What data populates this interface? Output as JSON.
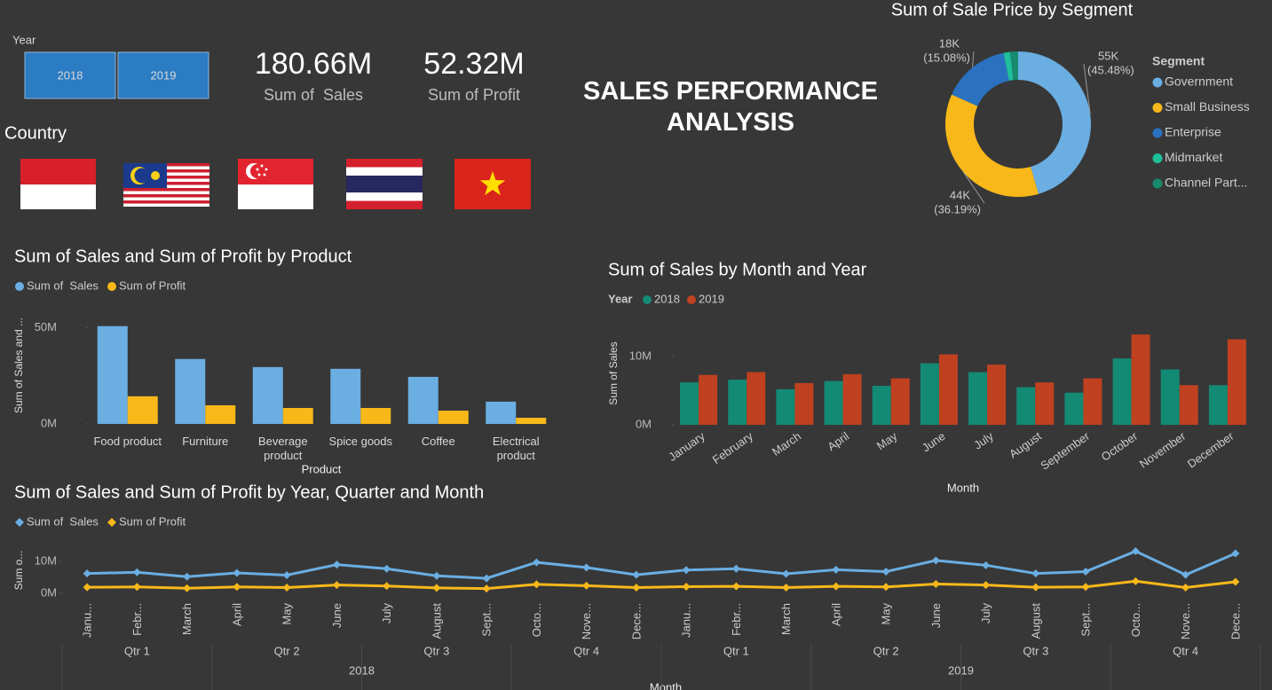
{
  "title": "SALES PERFORMANCE ANALYSIS",
  "slicer": {
    "label": "Year",
    "options": [
      "2018",
      "2019"
    ]
  },
  "cards": [
    {
      "value": "180.66M",
      "label": "Sum of  Sales"
    },
    {
      "value": "52.32M",
      "label": "Sum of Profit"
    }
  ],
  "country_label": "Country",
  "chart_data": [
    {
      "type": "donut",
      "title": "Sum of Sale Price by Segment",
      "legend_title": "Segment",
      "legend": "right",
      "categories": [
        "Government",
        "Small Business",
        "Enterprise",
        "Midmarket",
        "Channel Part..."
      ],
      "values": [
        54.98,
        43.75,
        18.23,
        1.8,
        2.13
      ],
      "value_labels": [
        "55K",
        "44K",
        "18K",
        null,
        null
      ],
      "percent_labels": [
        "(45.48%)",
        "(36.19%)",
        "(15.08%)",
        null,
        null
      ],
      "colors": [
        "#6aaee2",
        "#f8b81a",
        "#2a72c0",
        "#1fbf9c",
        "#178a70"
      ]
    },
    {
      "type": "bar",
      "title": "Sum of Sales and Sum of Profit by Product",
      "legend": "top-left",
      "x_label": "Product",
      "y_label": "Sum of Sales and ...",
      "categories": [
        "Food product",
        "Furniture",
        "Beverage product",
        "Spice goods",
        "Coffee",
        "Electrical product"
      ],
      "series": [
        {
          "name": "Sum of  Sales",
          "color": "#6aaee2",
          "values": [
            50.9,
            33.8,
            29.6,
            28.7,
            24.5,
            11.6
          ]
        },
        {
          "name": "Sum of Profit",
          "color": "#f8b81a",
          "values": [
            14.4,
            9.7,
            8.3,
            8.3,
            6.9,
            3.2
          ]
        }
      ],
      "ylim": [
        0,
        60
      ],
      "yticks": [
        {
          "value": 0,
          "label": "0M"
        },
        {
          "value": 50,
          "label": "50M"
        }
      ]
    },
    {
      "type": "bar",
      "title": "Sum of Sales by Month and Year",
      "legend": "top-left",
      "legend_title": "Year",
      "x_label": "Month",
      "y_label": "Sum of Sales",
      "categories": [
        "January",
        "February",
        "March",
        "April",
        "May",
        "June",
        "July",
        "August",
        "September",
        "October",
        "November",
        "December"
      ],
      "series": [
        {
          "name": "2018",
          "color": "#138a74",
          "values": [
            6.2,
            6.6,
            5.2,
            6.4,
            5.7,
            9.0,
            7.7,
            5.5,
            4.7,
            9.7,
            8.1,
            5.8
          ]
        },
        {
          "name": "2019",
          "color": "#bf4120",
          "values": [
            7.3,
            7.7,
            6.1,
            7.4,
            6.8,
            10.3,
            8.8,
            6.2,
            6.8,
            13.2,
            5.8,
            12.5
          ]
        }
      ],
      "ylim": [
        0,
        14
      ],
      "yticks": [
        {
          "value": 0,
          "label": "0M"
        },
        {
          "value": 10,
          "label": "10M"
        }
      ]
    },
    {
      "type": "line",
      "title": "Sum of Sales and Sum of Profit by Year, Quarter and Month",
      "legend": "top-left",
      "x_label": "Month",
      "y_label": "Sum o...",
      "categories": [
        "Janu...",
        "Febr...",
        "March",
        "April",
        "May",
        "June",
        "July",
        "August",
        "Sept...",
        "Octo...",
        "Nove...",
        "Dece...",
        "Janu...",
        "Febr...",
        "March",
        "April",
        "May",
        "June",
        "July",
        "August",
        "Sept...",
        "Octo...",
        "Nove...",
        "Dece..."
      ],
      "quarters": [
        "Qtr 1",
        "Qtr 2",
        "Qtr 3",
        "Qtr 4",
        "Qtr 1",
        "Qtr 2",
        "Qtr 3",
        "Qtr 4"
      ],
      "years": [
        "2018",
        "2019"
      ],
      "series": [
        {
          "name": "Sum of  Sales",
          "color": "#6aaee2",
          "values": [
            6.2,
            6.6,
            5.2,
            6.4,
            5.7,
            9.0,
            7.7,
            5.5,
            4.7,
            9.7,
            8.1,
            5.8,
            7.3,
            7.7,
            6.1,
            7.4,
            6.8,
            10.3,
            8.8,
            6.2,
            6.8,
            13.2,
            5.8,
            12.5
          ]
        },
        {
          "name": "Sum of Profit",
          "color": "#f8b81a",
          "values": [
            1.9,
            2.0,
            1.6,
            2.0,
            1.8,
            2.6,
            2.3,
            1.7,
            1.5,
            2.8,
            2.4,
            1.8,
            2.1,
            2.2,
            1.8,
            2.2,
            2.0,
            2.9,
            2.6,
            1.9,
            2.0,
            3.8,
            1.8,
            3.6
          ]
        }
      ],
      "ylim": [
        0,
        15
      ],
      "yticks": [
        {
          "value": 0,
          "label": "0M"
        },
        {
          "value": 10,
          "label": "10M"
        }
      ]
    }
  ]
}
